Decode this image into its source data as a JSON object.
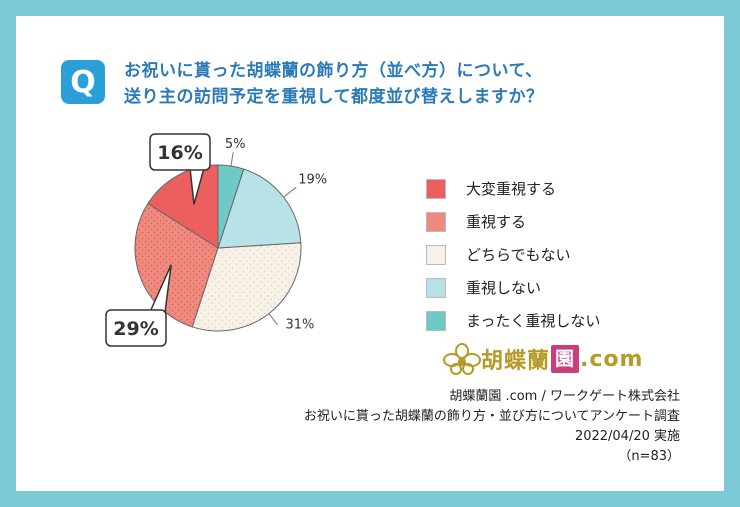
{
  "header": {
    "badge": "Q",
    "question_line1": "お祝いに貰った胡蝶蘭の飾り方（並べ方）について、",
    "question_line2": "送り主の訪問予定を重視して都度並び替えしますか？"
  },
  "chart_data": {
    "type": "pie",
    "title": "お祝いに貰った胡蝶蘭の飾り方（並べ方）について、送り主の訪問予定を重視して都度並び替えしますか？",
    "categories": [
      "大変重視する",
      "重視する",
      "どちらでもない",
      "重視しない",
      "まったく重視しない"
    ],
    "values": [
      16,
      29,
      31,
      19,
      5
    ],
    "unit": "%",
    "labels": [
      "16%",
      "29%",
      "31%",
      "19%",
      "5%"
    ],
    "colors": [
      "#ec5f5f",
      "#f08a7e",
      "#f7f1e8",
      "#b7e3e6",
      "#6ec9c7"
    ],
    "start": "top",
    "direction": "counterclockwise",
    "legend_position": "right"
  },
  "legend": {
    "items": [
      {
        "label": "大変重視する",
        "color": "#ec5f5f"
      },
      {
        "label": "重視する",
        "color": "#f08a7e"
      },
      {
        "label": "どちらでもない",
        "color": "#f7f1e8"
      },
      {
        "label": "重視しない",
        "color": "#b7e3e6"
      },
      {
        "label": "まったく重視しない",
        "color": "#6ec9c7"
      }
    ]
  },
  "brand": {
    "name_part1": "胡蝶蘭",
    "name_boxed": "園",
    "name_part2": ".com",
    "color": "#b69a28",
    "box_color": "#c93f7e",
    "icon": "orchid-logo-icon"
  },
  "footer": {
    "line1": "胡蝶蘭園 .com / ワークゲート株式会社",
    "line2": "お祝いに貰った胡蝶蘭の飾り方・並び方についてアンケート調査",
    "line3": "2022/04/20 実施",
    "line4": "（n=83）"
  }
}
